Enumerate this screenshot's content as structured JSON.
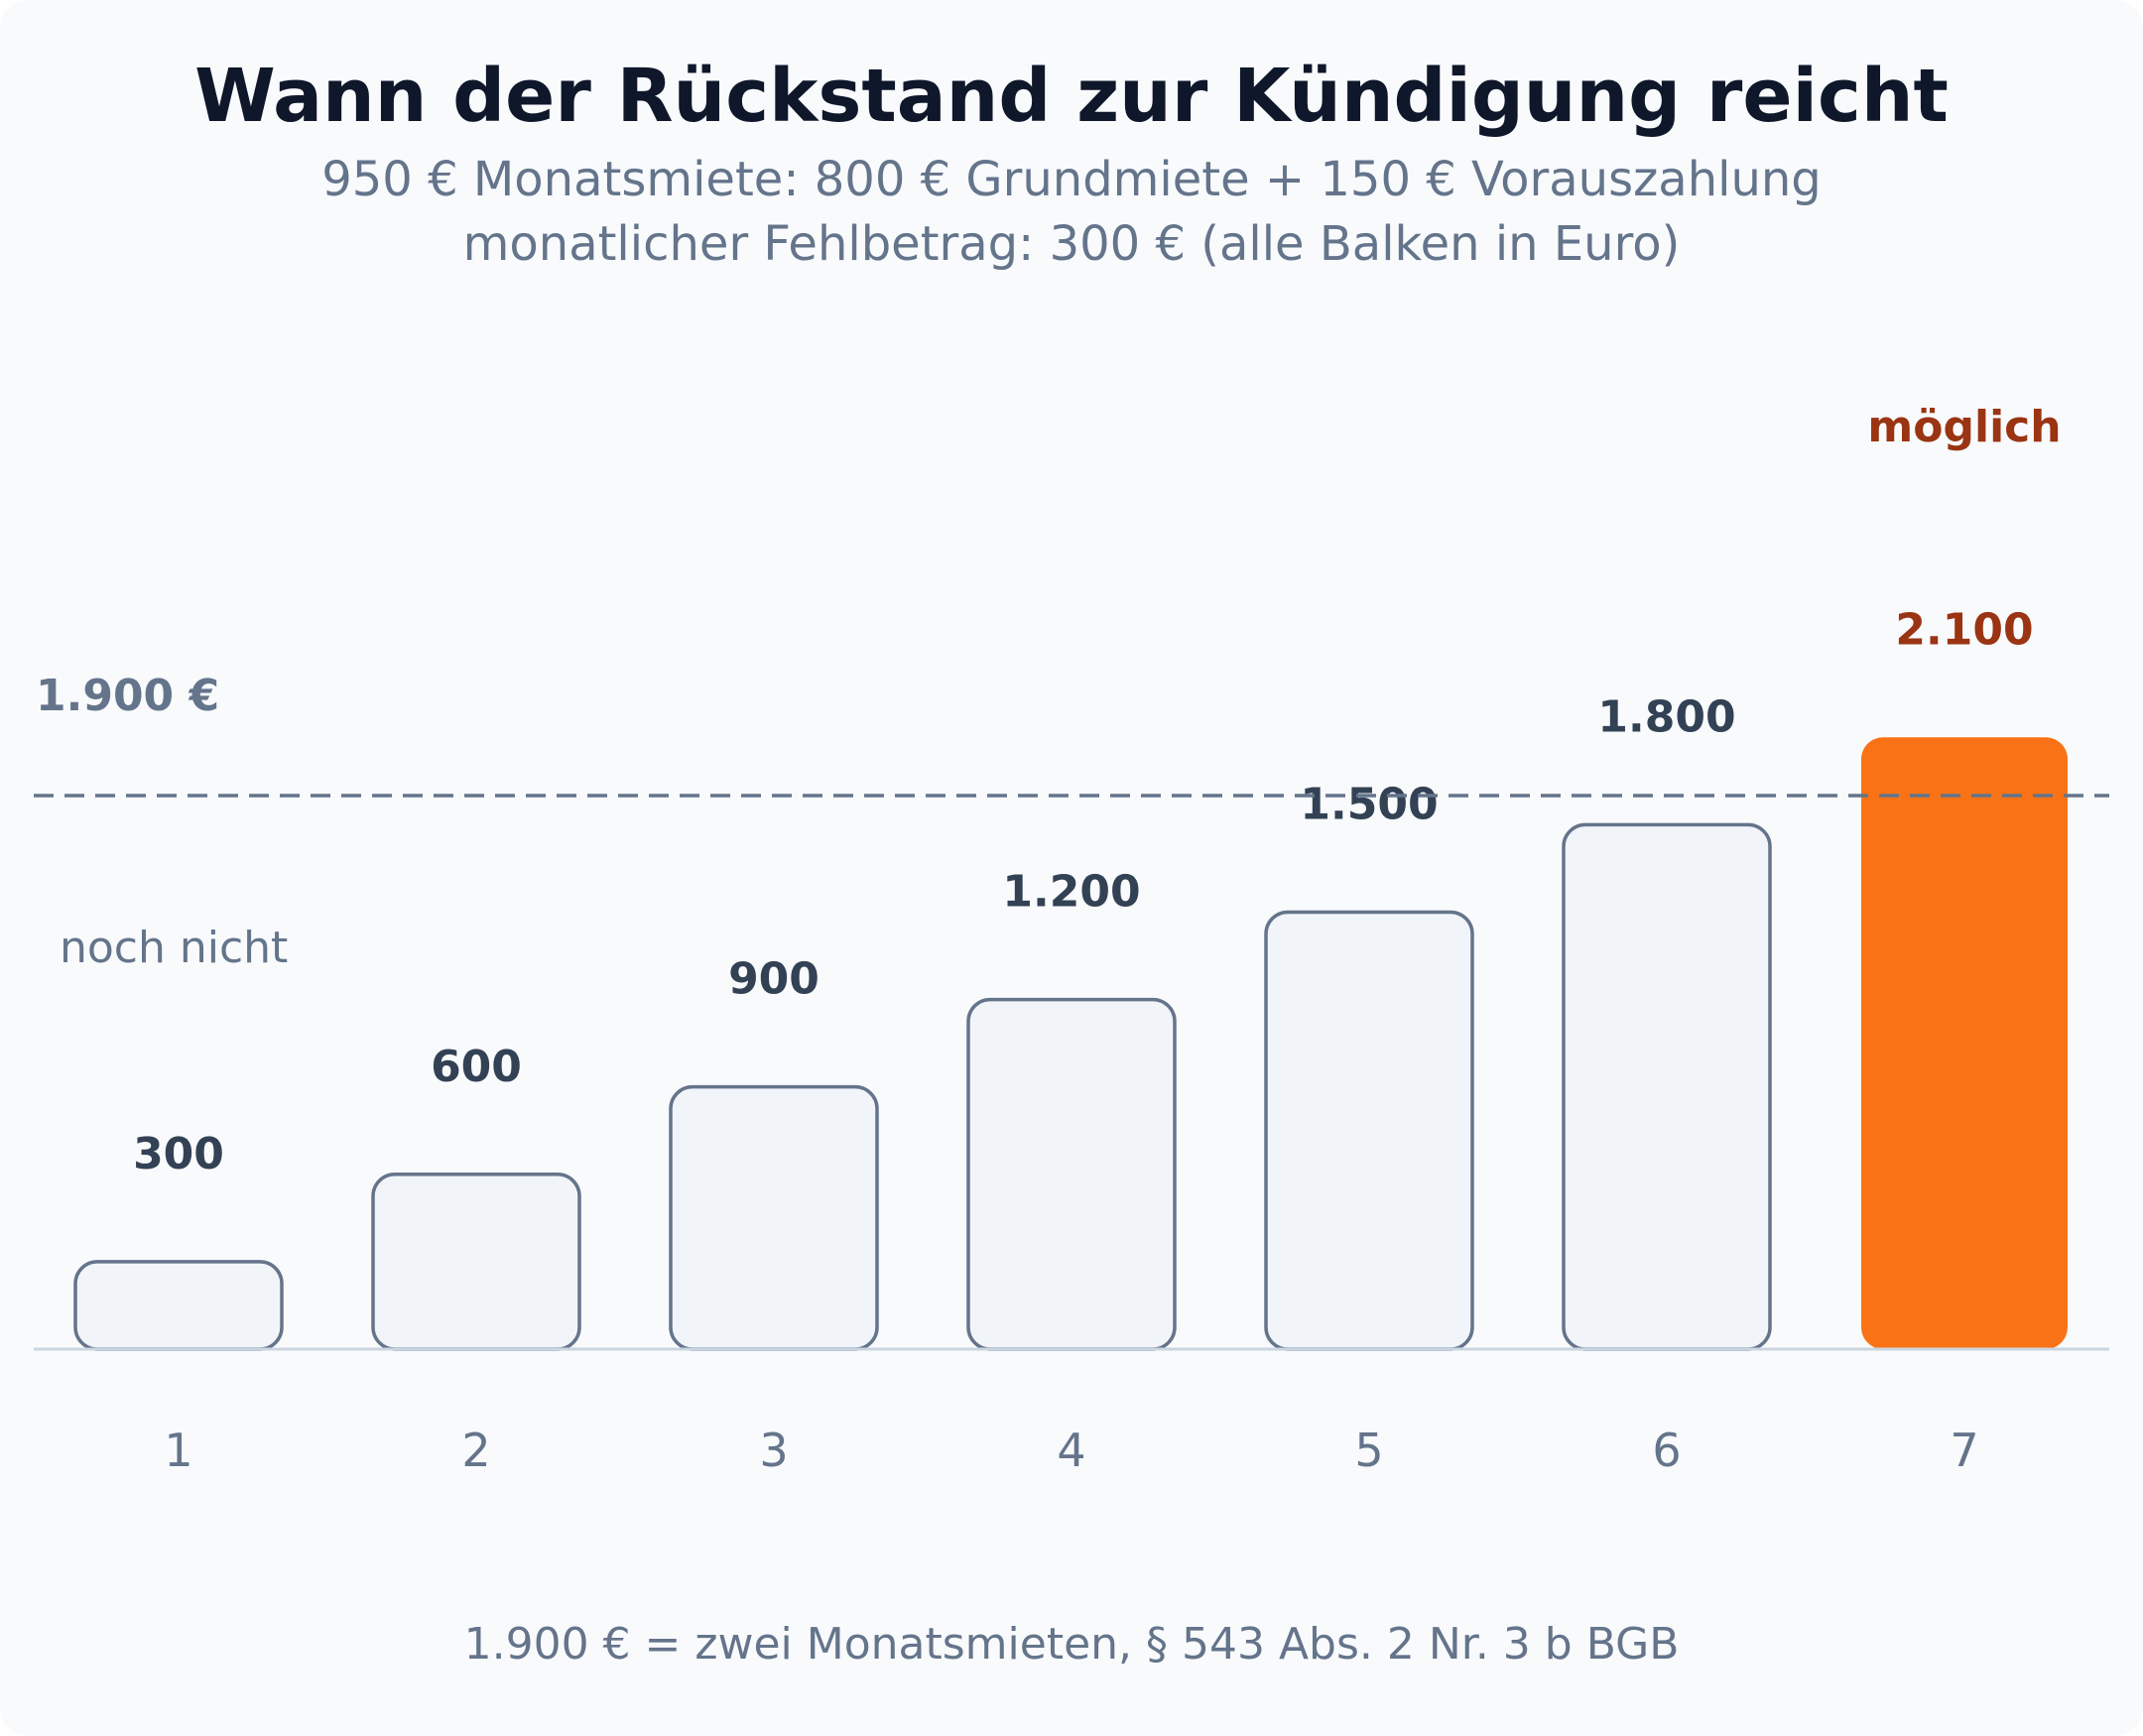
{
  "chart_data": {
    "type": "bar",
    "title": "Wann der Rückstand zur Kündigung reicht",
    "subtitle_lines": [
      "950 € Monatsmiete: 800 € Grundmiete + 150 € Vorauszahlung",
      "monatlicher Fehlbetrag: 300 € (alle Balken in Euro)"
    ],
    "categories": [
      "1",
      "2",
      "3",
      "4",
      "5",
      "6",
      "7"
    ],
    "values": [
      300,
      600,
      900,
      1200,
      1500,
      1800,
      2100
    ],
    "value_labels": [
      "300",
      "600",
      "900",
      "1.200",
      "1.500",
      "1.800",
      "2.100"
    ],
    "threshold": {
      "value": 1900,
      "label": "1.900 €"
    },
    "zone_labels": {
      "below": "noch nicht",
      "above": "möglich"
    },
    "highlight_index": 6,
    "ylim": [
      0,
      2500
    ],
    "grid": false,
    "legend": "none",
    "footnote": "1.900 € = zwei Monatsmieten, § 543 Abs. 2 Nr. 3 b BGB",
    "colors": {
      "bar_fill": "#f1f5f9",
      "bar_stroke": "#64748b",
      "highlight_fill": "#f97316",
      "highlight_label": "#9a3412",
      "threshold_line": "#64748b",
      "baseline": "#cbd5e1"
    }
  }
}
